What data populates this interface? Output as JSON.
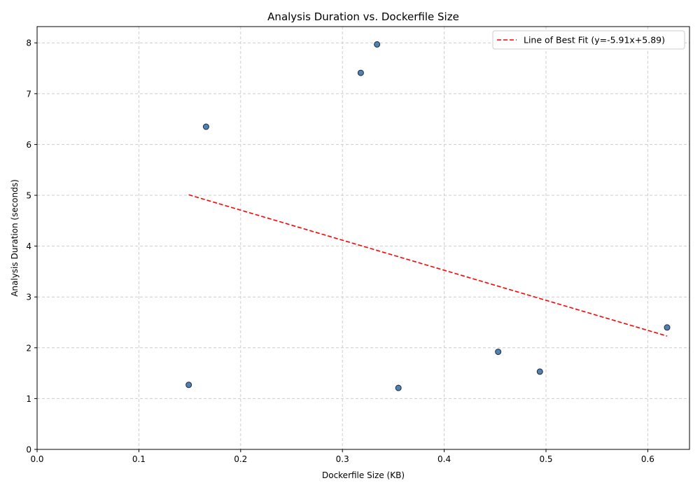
{
  "chart_data": {
    "type": "scatter",
    "title": "Analysis Duration vs. Dockerfile Size",
    "xlabel": "Dockerfile Size (KB)",
    "ylabel": "Analysis Duration (seconds)",
    "xlim": [
      0.0,
      0.641
    ],
    "ylim": [
      0,
      8.32
    ],
    "xticks": [
      0.0,
      0.1,
      0.2,
      0.3,
      0.4,
      0.5,
      0.6
    ],
    "xtick_labels": [
      "0.0",
      "0.1",
      "0.2",
      "0.3",
      "0.4",
      "0.5",
      "0.6"
    ],
    "yticks": [
      0,
      1,
      2,
      3,
      4,
      5,
      6,
      7,
      8
    ],
    "ytick_labels": [
      "0",
      "1",
      "2",
      "3",
      "4",
      "5",
      "6",
      "7",
      "8"
    ],
    "grid": true,
    "legend_position": "top-right",
    "series": [
      {
        "kind": "scatter",
        "color": "#4f81b3",
        "edge_color": "#1f2b3a",
        "points": [
          {
            "x": 0.149,
            "y": 1.27
          },
          {
            "x": 0.166,
            "y": 6.35
          },
          {
            "x": 0.318,
            "y": 7.41
          },
          {
            "x": 0.334,
            "y": 7.97
          },
          {
            "x": 0.355,
            "y": 1.21
          },
          {
            "x": 0.453,
            "y": 1.92
          },
          {
            "x": 0.494,
            "y": 1.53
          },
          {
            "x": 0.619,
            "y": 2.4
          }
        ]
      },
      {
        "kind": "line",
        "name": "Line of Best Fit (y=-5.91x+5.89)",
        "color": "#ff0000",
        "dash": "dashed",
        "points": [
          {
            "x": 0.149,
            "y": 5.01
          },
          {
            "x": 0.619,
            "y": 2.23
          }
        ]
      }
    ]
  }
}
